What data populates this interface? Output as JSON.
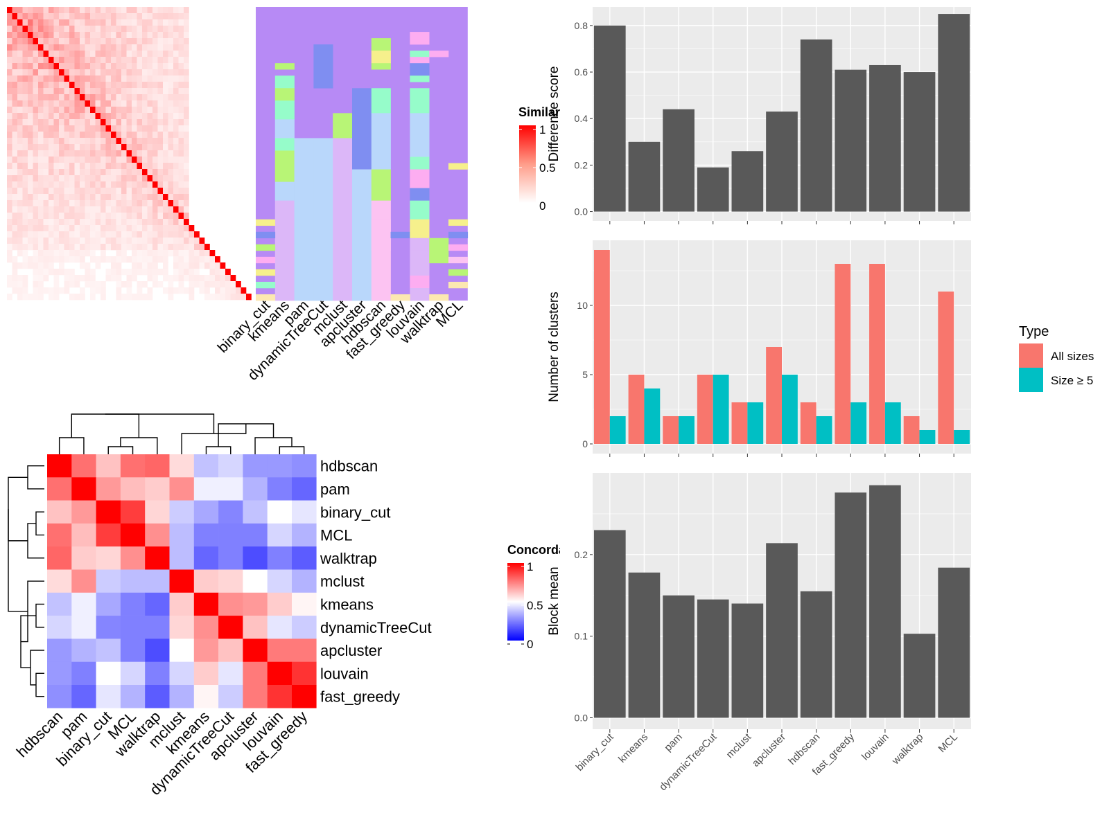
{
  "methods": [
    "binary_cut",
    "kmeans",
    "pam",
    "dynamicTreeCut",
    "mclust",
    "apcluster",
    "hdbscan",
    "fast_greedy",
    "louvain",
    "walktrap",
    "MCL"
  ],
  "colors": {
    "panel_bg": "#ebebeb",
    "grid": "#ffffff",
    "bar": "#595959",
    "all_sizes": "#f8766d",
    "size5": "#00bfc4",
    "heat_high": "#ff0000",
    "heat_mid": "#ffffff",
    "heat_low": "#0000ff"
  },
  "similarity_legend": {
    "title": "Similarity",
    "ticks": [
      "1",
      "0.5",
      "0"
    ]
  },
  "concordance_legend": {
    "title": "Concordance",
    "ticks": [
      "1",
      "0.5",
      "0"
    ]
  },
  "chart_data": [
    {
      "type": "heatmap",
      "description_key": "similarity_matrix",
      "n": 47,
      "scale": "white-to-red"
    },
    {
      "type": "heatmap",
      "description_key": "cluster_assignments",
      "columns": [
        "binary_cut",
        "kmeans",
        "pam",
        "dynamicTreeCut",
        "mclust",
        "apcluster",
        "hdbscan",
        "fast_greedy",
        "louvain",
        "walktrap",
        "MCL"
      ]
    },
    {
      "type": "heatmap",
      "description_key": "concordance",
      "rows": [
        "hdbscan",
        "pam",
        "binary_cut",
        "MCL",
        "walktrap",
        "mclust",
        "kmeans",
        "dynamicTreeCut",
        "apcluster",
        "louvain",
        "fast_greedy"
      ],
      "columns": [
        "hdbscan",
        "pam",
        "binary_cut",
        "MCL",
        "walktrap",
        "mclust",
        "kmeans",
        "dynamicTreeCut",
        "apcluster",
        "louvain",
        "fast_greedy"
      ],
      "values": [
        [
          1.0,
          0.78,
          0.62,
          0.78,
          0.8,
          0.57,
          0.38,
          0.42,
          0.3,
          0.3,
          0.28
        ],
        [
          0.78,
          1.0,
          0.7,
          0.63,
          0.6,
          0.72,
          0.47,
          0.47,
          0.35,
          0.25,
          0.2
        ],
        [
          0.62,
          0.7,
          1.0,
          0.88,
          0.58,
          0.4,
          0.33,
          0.26,
          0.38,
          0.5,
          0.45
        ],
        [
          0.78,
          0.63,
          0.88,
          1.0,
          0.72,
          0.37,
          0.25,
          0.25,
          0.25,
          0.42,
          0.35
        ],
        [
          0.8,
          0.6,
          0.58,
          0.72,
          1.0,
          0.37,
          0.2,
          0.25,
          0.15,
          0.25,
          0.18
        ],
        [
          0.57,
          0.72,
          0.4,
          0.37,
          0.37,
          1.0,
          0.6,
          0.58,
          0.5,
          0.42,
          0.35
        ],
        [
          0.38,
          0.47,
          0.33,
          0.25,
          0.2,
          0.6,
          1.0,
          0.72,
          0.7,
          0.6,
          0.52
        ],
        [
          0.42,
          0.47,
          0.26,
          0.25,
          0.25,
          0.58,
          0.72,
          1.0,
          0.62,
          0.45,
          0.4
        ],
        [
          0.3,
          0.35,
          0.38,
          0.25,
          0.15,
          0.5,
          0.7,
          0.62,
          1.0,
          0.76,
          0.76
        ],
        [
          0.3,
          0.25,
          0.5,
          0.42,
          0.25,
          0.42,
          0.6,
          0.45,
          0.76,
          1.0,
          0.9
        ],
        [
          0.28,
          0.2,
          0.45,
          0.35,
          0.18,
          0.35,
          0.52,
          0.4,
          0.76,
          0.9,
          1.0
        ]
      ],
      "scale": [
        0,
        1
      ]
    },
    {
      "type": "bar",
      "categories": [
        "binary_cut",
        "kmeans",
        "pam",
        "dynamicTreeCut",
        "mclust",
        "apcluster",
        "hdbscan",
        "fast_greedy",
        "louvain",
        "walktrap",
        "MCL"
      ],
      "values": [
        0.8,
        0.3,
        0.44,
        0.19,
        0.26,
        0.43,
        0.74,
        0.61,
        0.63,
        0.6,
        0.85
      ],
      "ylabel": "Difference score",
      "yticks": [
        "0.0",
        "0.2",
        "0.4",
        "0.6",
        "0.8"
      ],
      "ylim": [
        -0.04,
        0.88
      ]
    },
    {
      "type": "bar",
      "categories": [
        "binary_cut",
        "kmeans",
        "pam",
        "dynamicTreeCut",
        "mclust",
        "apcluster",
        "hdbscan",
        "fast_greedy",
        "louvain",
        "walktrap",
        "MCL"
      ],
      "series": [
        {
          "name": "All sizes",
          "values": [
            14,
            5,
            2,
            5,
            3,
            7,
            3,
            13,
            13,
            2,
            11
          ]
        },
        {
          "name": "Size ≥ 5",
          "values": [
            2,
            4,
            2,
            5,
            3,
            5,
            2,
            3,
            3,
            1,
            1
          ]
        }
      ],
      "ylabel": "Number of clusters",
      "yticks": [
        "0",
        "5",
        "10"
      ],
      "ylim": [
        -0.7,
        14.7
      ],
      "legend_title": "Type",
      "legend_position": "right"
    },
    {
      "type": "bar",
      "categories": [
        "binary_cut",
        "kmeans",
        "pam",
        "dynamicTreeCut",
        "mclust",
        "apcluster",
        "hdbscan",
        "fast_greedy",
        "louvain",
        "walktrap",
        "MCL"
      ],
      "values": [
        0.23,
        0.178,
        0.15,
        0.145,
        0.14,
        0.214,
        0.155,
        0.276,
        0.285,
        0.103,
        0.184
      ],
      "ylabel": "Block mean",
      "yticks": [
        "0.0",
        "0.1",
        "0.2"
      ],
      "ylim": [
        -0.014,
        0.3
      ]
    }
  ]
}
